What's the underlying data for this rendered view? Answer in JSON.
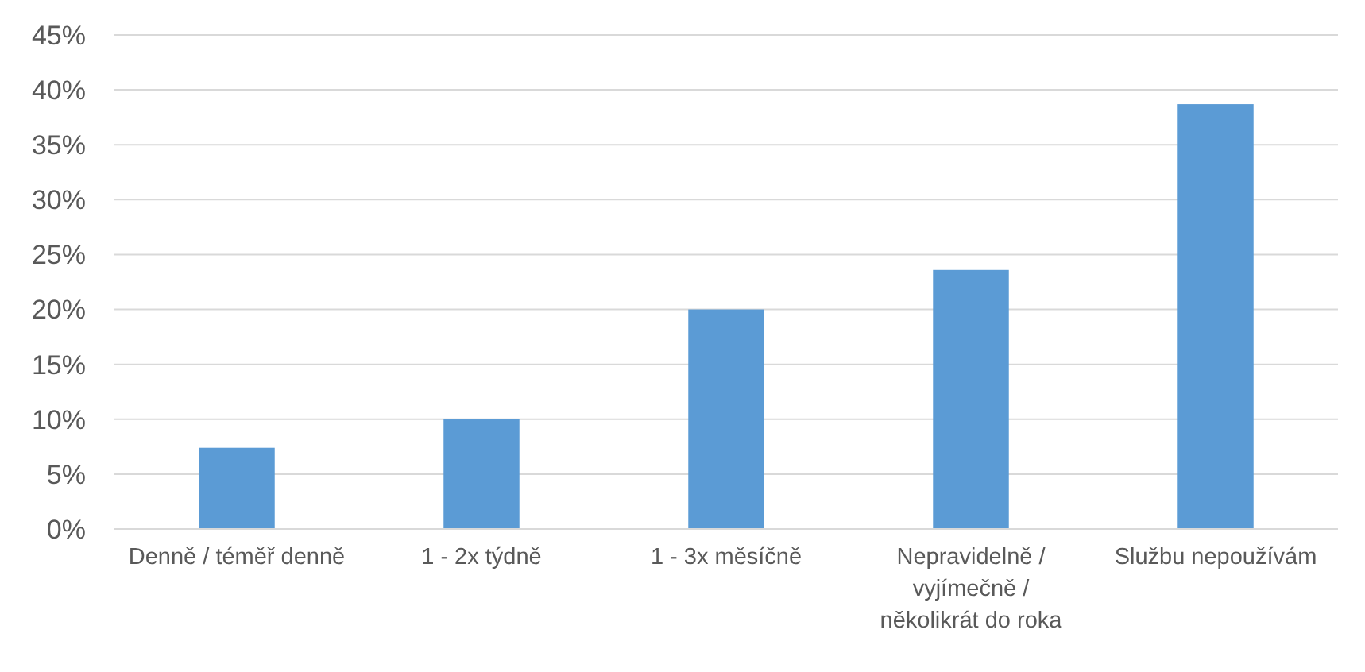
{
  "chart_data": {
    "type": "bar",
    "categories": [
      "Denně / téměř denně",
      "1 - 2x týdně",
      "1 - 3x měsíčně",
      "Nepravidelně / vyjímečně / několikrát do roka",
      "Službu nepoužívám"
    ],
    "values": [
      7.4,
      10,
      20,
      23.6,
      38.7
    ],
    "color": "#5b9bd5",
    "ylim": [
      0,
      45
    ],
    "yticks": [
      {
        "value": 0,
        "label": "0%"
      },
      {
        "value": 5,
        "label": "5%"
      },
      {
        "value": 10,
        "label": "10%"
      },
      {
        "value": 15,
        "label": "15%"
      },
      {
        "value": 20,
        "label": "20%"
      },
      {
        "value": 25,
        "label": "25%"
      },
      {
        "value": 30,
        "label": "30%"
      },
      {
        "value": 35,
        "label": "35%"
      },
      {
        "value": 40,
        "label": "40%"
      },
      {
        "value": 45,
        "label": "45%"
      }
    ],
    "grid": "y"
  }
}
